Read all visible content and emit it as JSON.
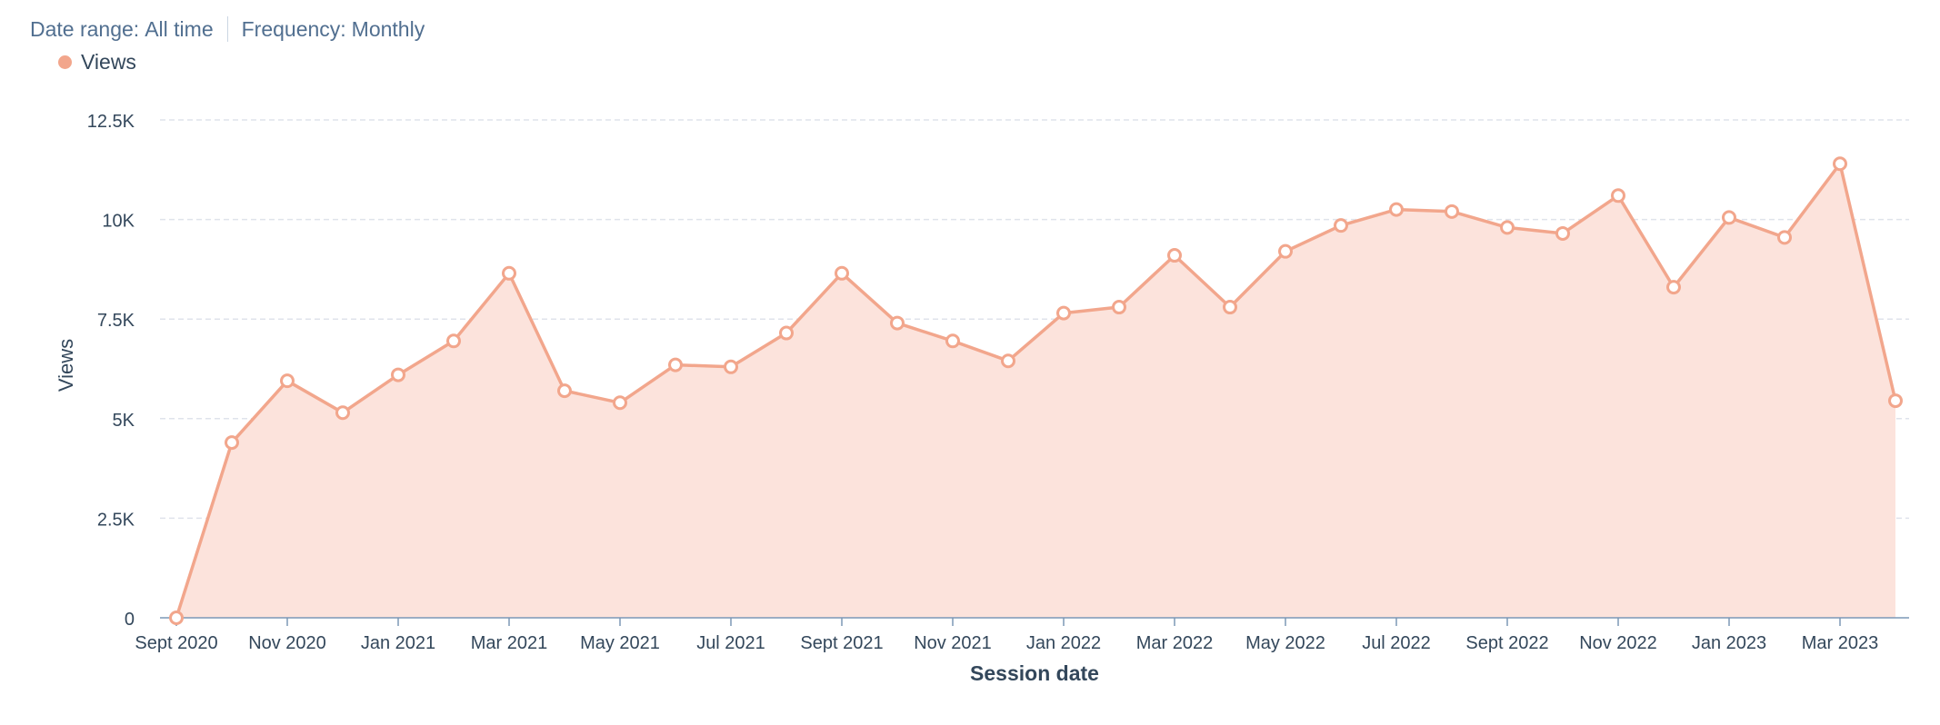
{
  "filters": {
    "date_range_label": "Date range:",
    "date_range_value": "All time",
    "frequency_label": "Frequency:",
    "frequency_value": "Monthly"
  },
  "colors": {
    "series_line": "#f2a68c",
    "series_fill": "#fce3dc",
    "grid": "#dfe3eb",
    "axis": "#7c98b6",
    "text": "#33475b"
  },
  "chart_data": {
    "type": "area",
    "xlabel": "Session date",
    "ylabel": "Views",
    "ylim": [
      0,
      12500
    ],
    "y_ticks": [
      0,
      2500,
      5000,
      7500,
      10000,
      12500
    ],
    "y_tick_labels": [
      "0",
      "2.5K",
      "5K",
      "7.5K",
      "10K",
      "12.5K"
    ],
    "x_tick_labels": [
      "Sept 2020",
      "Nov 2020",
      "Jan 2021",
      "Mar 2021",
      "May 2021",
      "Jul 2021",
      "Sept 2021",
      "Nov 2021",
      "Jan 2022",
      "Mar 2022",
      "May 2022",
      "Jul 2022",
      "Sept 2022",
      "Nov 2022",
      "Jan 2023",
      "Mar 2023"
    ],
    "legend_position": "top-left",
    "grid": true,
    "x": [
      "2020-09",
      "2020-10",
      "2020-11",
      "2020-12",
      "2021-01",
      "2021-02",
      "2021-03",
      "2021-04",
      "2021-05",
      "2021-06",
      "2021-07",
      "2021-08",
      "2021-09",
      "2021-10",
      "2021-11",
      "2021-12",
      "2022-01",
      "2022-02",
      "2022-03",
      "2022-04",
      "2022-05",
      "2022-06",
      "2022-07",
      "2022-08",
      "2022-09",
      "2022-10",
      "2022-11",
      "2022-12",
      "2023-01",
      "2023-02",
      "2023-03",
      "2023-04"
    ],
    "series": [
      {
        "name": "Views",
        "values": [
          0,
          4400,
          5950,
          5150,
          6100,
          6950,
          8650,
          5700,
          5400,
          6350,
          6300,
          7150,
          8650,
          7400,
          6950,
          6450,
          7650,
          7800,
          9100,
          7800,
          9200,
          9850,
          10250,
          10200,
          9800,
          9650,
          10600,
          8300,
          10050,
          9550,
          11400,
          5450
        ]
      }
    ]
  }
}
